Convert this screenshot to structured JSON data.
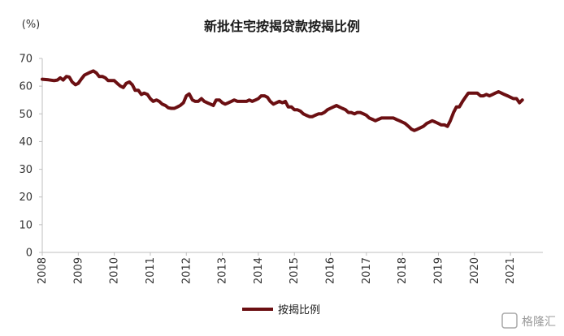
{
  "chart_data": {
    "type": "line",
    "title": "新批住宅按揭贷款按揭比例",
    "unit_label": "(%)",
    "xlabel": "",
    "ylabel": "",
    "ylim": [
      0,
      70
    ],
    "yticks": [
      "0",
      "10",
      "20",
      "30",
      "40",
      "50",
      "60",
      "70"
    ],
    "xlim": [
      2008.0,
      2021.9
    ],
    "xticks": [
      "2008",
      "2009",
      "2010",
      "2011",
      "2012",
      "2013",
      "2014",
      "2015",
      "2016",
      "2017",
      "2018",
      "2019",
      "2020",
      "2021"
    ],
    "grid": false,
    "legend_position": "bottom-center",
    "series": [
      {
        "name": "按揭比例",
        "color": "#6b0f12",
        "points": [
          [
            2008.0,
            62.5
          ],
          [
            2008.17,
            62.3
          ],
          [
            2008.33,
            62.0
          ],
          [
            2008.42,
            62.2
          ],
          [
            2008.5,
            63.0
          ],
          [
            2008.58,
            62.2
          ],
          [
            2008.67,
            63.5
          ],
          [
            2008.75,
            63.3
          ],
          [
            2008.83,
            61.5
          ],
          [
            2008.92,
            60.5
          ],
          [
            2009.0,
            61.0
          ],
          [
            2009.08,
            62.5
          ],
          [
            2009.17,
            64.0
          ],
          [
            2009.25,
            64.5
          ],
          [
            2009.33,
            65.0
          ],
          [
            2009.42,
            65.5
          ],
          [
            2009.5,
            64.8
          ],
          [
            2009.58,
            63.5
          ],
          [
            2009.67,
            63.5
          ],
          [
            2009.75,
            63.0
          ],
          [
            2009.83,
            62.0
          ],
          [
            2009.92,
            62.0
          ],
          [
            2010.0,
            62.0
          ],
          [
            2010.08,
            61.0
          ],
          [
            2010.17,
            60.0
          ],
          [
            2010.25,
            59.5
          ],
          [
            2010.33,
            61.0
          ],
          [
            2010.42,
            61.5
          ],
          [
            2010.5,
            60.5
          ],
          [
            2010.58,
            58.5
          ],
          [
            2010.67,
            58.5
          ],
          [
            2010.75,
            57.0
          ],
          [
            2010.83,
            57.5
          ],
          [
            2010.92,
            57.0
          ],
          [
            2011.0,
            55.5
          ],
          [
            2011.08,
            54.5
          ],
          [
            2011.17,
            55.0
          ],
          [
            2011.25,
            54.5
          ],
          [
            2011.33,
            53.5
          ],
          [
            2011.42,
            53.0
          ],
          [
            2011.5,
            52.2
          ],
          [
            2011.58,
            52.0
          ],
          [
            2011.67,
            52.0
          ],
          [
            2011.75,
            52.5
          ],
          [
            2011.83,
            53.0
          ],
          [
            2011.92,
            54.0
          ],
          [
            2012.0,
            56.5
          ],
          [
            2012.08,
            57.2
          ],
          [
            2012.17,
            55.0
          ],
          [
            2012.25,
            54.5
          ],
          [
            2012.33,
            54.5
          ],
          [
            2012.42,
            55.5
          ],
          [
            2012.5,
            54.5
          ],
          [
            2012.58,
            54.0
          ],
          [
            2012.67,
            53.5
          ],
          [
            2012.75,
            53.0
          ],
          [
            2012.83,
            55.0
          ],
          [
            2012.92,
            55.0
          ],
          [
            2013.0,
            54.0
          ],
          [
            2013.08,
            53.5
          ],
          [
            2013.17,
            54.0
          ],
          [
            2013.25,
            54.5
          ],
          [
            2013.33,
            55.0
          ],
          [
            2013.42,
            54.5
          ],
          [
            2013.5,
            54.5
          ],
          [
            2013.58,
            54.5
          ],
          [
            2013.67,
            54.5
          ],
          [
            2013.75,
            55.0
          ],
          [
            2013.83,
            54.5
          ],
          [
            2013.92,
            55.0
          ],
          [
            2014.0,
            55.5
          ],
          [
            2014.08,
            56.5
          ],
          [
            2014.17,
            56.5
          ],
          [
            2014.25,
            56.0
          ],
          [
            2014.33,
            54.5
          ],
          [
            2014.42,
            53.5
          ],
          [
            2014.5,
            54.0
          ],
          [
            2014.58,
            54.5
          ],
          [
            2014.67,
            54.0
          ],
          [
            2014.75,
            54.5
          ],
          [
            2014.83,
            52.5
          ],
          [
            2014.92,
            52.5
          ],
          [
            2015.0,
            51.5
          ],
          [
            2015.08,
            51.5
          ],
          [
            2015.17,
            51.0
          ],
          [
            2015.25,
            50.0
          ],
          [
            2015.33,
            49.5
          ],
          [
            2015.42,
            49.0
          ],
          [
            2015.5,
            49.0
          ],
          [
            2015.58,
            49.5
          ],
          [
            2015.67,
            50.0
          ],
          [
            2015.75,
            50.0
          ],
          [
            2015.83,
            50.5
          ],
          [
            2015.92,
            51.5
          ],
          [
            2016.0,
            52.0
          ],
          [
            2016.08,
            52.5
          ],
          [
            2016.17,
            53.0
          ],
          [
            2016.25,
            52.5
          ],
          [
            2016.33,
            52.0
          ],
          [
            2016.42,
            51.5
          ],
          [
            2016.5,
            50.5
          ],
          [
            2016.58,
            50.5
          ],
          [
            2016.67,
            50.0
          ],
          [
            2016.75,
            50.5
          ],
          [
            2016.83,
            50.5
          ],
          [
            2016.92,
            50.0
          ],
          [
            2017.0,
            49.5
          ],
          [
            2017.08,
            48.5
          ],
          [
            2017.17,
            48.0
          ],
          [
            2017.25,
            47.5
          ],
          [
            2017.33,
            48.0
          ],
          [
            2017.42,
            48.5
          ],
          [
            2017.5,
            48.5
          ],
          [
            2017.58,
            48.5
          ],
          [
            2017.67,
            48.5
          ],
          [
            2017.75,
            48.5
          ],
          [
            2017.83,
            48.0
          ],
          [
            2017.92,
            47.5
          ],
          [
            2018.0,
            47.0
          ],
          [
            2018.08,
            46.5
          ],
          [
            2018.17,
            45.5
          ],
          [
            2018.25,
            44.5
          ],
          [
            2018.33,
            44.0
          ],
          [
            2018.42,
            44.5
          ],
          [
            2018.5,
            45.0
          ],
          [
            2018.58,
            45.5
          ],
          [
            2018.67,
            46.5
          ],
          [
            2018.75,
            47.0
          ],
          [
            2018.83,
            47.5
          ],
          [
            2018.92,
            47.0
          ],
          [
            2019.0,
            46.5
          ],
          [
            2019.08,
            46.0
          ],
          [
            2019.17,
            46.0
          ],
          [
            2019.25,
            45.5
          ],
          [
            2019.33,
            47.5
          ],
          [
            2019.42,
            50.5
          ],
          [
            2019.5,
            52.5
          ],
          [
            2019.58,
            52.5
          ],
          [
            2019.67,
            54.5
          ],
          [
            2019.75,
            56.0
          ],
          [
            2019.83,
            57.5
          ],
          [
            2019.92,
            57.5
          ],
          [
            2020.0,
            57.5
          ],
          [
            2020.08,
            57.5
          ],
          [
            2020.17,
            56.5
          ],
          [
            2020.25,
            56.5
          ],
          [
            2020.33,
            57.0
          ],
          [
            2020.42,
            56.5
          ],
          [
            2020.5,
            57.0
          ],
          [
            2020.58,
            57.5
          ],
          [
            2020.67,
            58.0
          ],
          [
            2020.75,
            57.5
          ],
          [
            2020.83,
            57.0
          ],
          [
            2020.92,
            56.5
          ],
          [
            2021.0,
            56.0
          ],
          [
            2021.08,
            55.5
          ],
          [
            2021.17,
            55.5
          ],
          [
            2021.25,
            54.0
          ],
          [
            2021.33,
            55.0
          ]
        ]
      }
    ]
  },
  "watermark": {
    "text": "格隆汇"
  }
}
